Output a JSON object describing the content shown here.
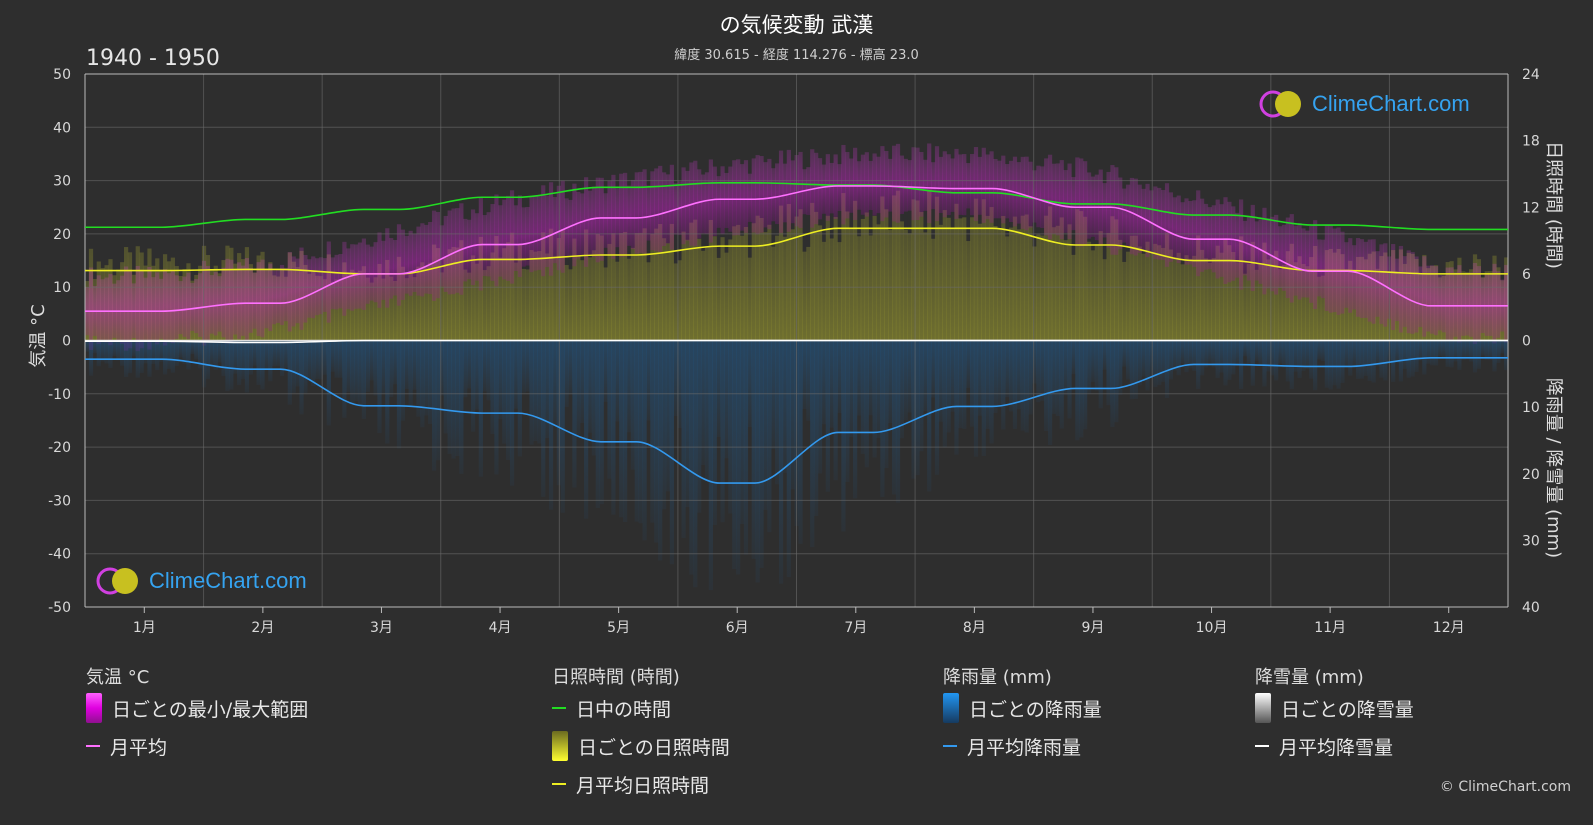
{
  "header": {
    "title": "の気候変動 武漢",
    "subtitle": "緯度 30.615 - 経度 114.276 - 標高 23.0",
    "period": "1940 - 1950"
  },
  "axes": {
    "left_label": "気温 °C",
    "right_top_label": "日照時間 (時間)",
    "right_bottom_label": "降雨量 / 降雪量 (mm)"
  },
  "legend": {
    "temperature": {
      "head": "気温 °C",
      "items": [
        {
          "label": "日ごとの最小/最大範囲",
          "kind": "bar",
          "color": "#e020e0"
        },
        {
          "label": "月平均",
          "kind": "line",
          "color": "#ff70ff"
        }
      ]
    },
    "sunshine": {
      "head": "日照時間 (時間)",
      "items": [
        {
          "label": "日中の時間",
          "kind": "line",
          "color": "#22dd22"
        },
        {
          "label": "日ごとの日照時間",
          "kind": "bar",
          "color": "#c8c820"
        },
        {
          "label": "月平均日照時間",
          "kind": "line",
          "color": "#eeee22"
        }
      ]
    },
    "rain": {
      "head": "降雨量 (mm)",
      "items": [
        {
          "label": "日ごとの降雨量",
          "kind": "bar",
          "color": "#1e88e5"
        },
        {
          "label": "月平均降雨量",
          "kind": "line",
          "color": "#3399ee"
        }
      ]
    },
    "snow": {
      "head": "降雪量 (mm)",
      "items": [
        {
          "label": "日ごとの降雪量",
          "kind": "bar",
          "color": "#dddddd"
        },
        {
          "label": "月平均降雪量",
          "kind": "line",
          "color": "#ffffff"
        }
      ]
    }
  },
  "logo_text": "ClimeChart.com",
  "copyright": "© ClimeChart.com",
  "chart_data": {
    "type": "line",
    "categories": [
      "1月",
      "2月",
      "3月",
      "4月",
      "5月",
      "6月",
      "7月",
      "8月",
      "9月",
      "10月",
      "11月",
      "12月"
    ],
    "left_axis": {
      "label": "気温 °C",
      "range": [
        -50,
        50
      ],
      "ticks": [
        50,
        40,
        30,
        20,
        10,
        0,
        -10,
        -20,
        -30,
        -40,
        -50
      ]
    },
    "right_axis_top": {
      "label": "日照時間 (時間)",
      "range": [
        0,
        24
      ],
      "ticks": [
        24,
        18,
        12,
        6,
        0
      ]
    },
    "right_axis_bottom": {
      "label": "降雨量 / 降雪量 (mm)",
      "range": [
        0,
        40
      ],
      "ticks": [
        10,
        20,
        30,
        40
      ]
    },
    "grid": true,
    "series": [
      {
        "name": "日中の時間",
        "axis": "sunshine",
        "color": "#22dd22",
        "values": [
          10.2,
          10.9,
          11.8,
          12.9,
          13.8,
          14.2,
          14.0,
          13.3,
          12.3,
          11.3,
          10.4,
          10.0
        ]
      },
      {
        "name": "月平均日照時間",
        "axis": "sunshine",
        "color": "#eeee22",
        "values": [
          6.3,
          6.4,
          6.0,
          7.3,
          7.7,
          8.5,
          10.1,
          10.1,
          8.6,
          7.2,
          6.3,
          6.0
        ]
      },
      {
        "name": "月平均",
        "axis": "temperature",
        "color": "#ff70ff",
        "values": [
          5.5,
          7.0,
          12.5,
          18.0,
          23.0,
          26.5,
          29.0,
          28.5,
          25.0,
          19.0,
          13.0,
          6.5
        ]
      },
      {
        "name": "月平均降雨量",
        "axis": "precip",
        "color": "#3399ee",
        "values": [
          2.8,
          4.3,
          9.8,
          10.9,
          15.2,
          21.4,
          13.8,
          9.9,
          7.2,
          3.6,
          3.9,
          2.6
        ]
      },
      {
        "name": "月平均降雪量",
        "axis": "precip",
        "color": "#ffffff",
        "values": [
          0.1,
          0.3,
          0.0,
          0.0,
          0.0,
          0.0,
          0.0,
          0.0,
          0.0,
          0.0,
          0.0,
          0.0
        ]
      }
    ],
    "temp_range": {
      "name": "日ごとの最小/最大範囲",
      "min": [
        1,
        3,
        8,
        13,
        18,
        22,
        25,
        25,
        20,
        14,
        8,
        2
      ],
      "max": [
        10,
        12,
        18,
        24,
        28,
        31,
        33,
        33,
        30,
        24,
        18,
        11
      ]
    }
  }
}
